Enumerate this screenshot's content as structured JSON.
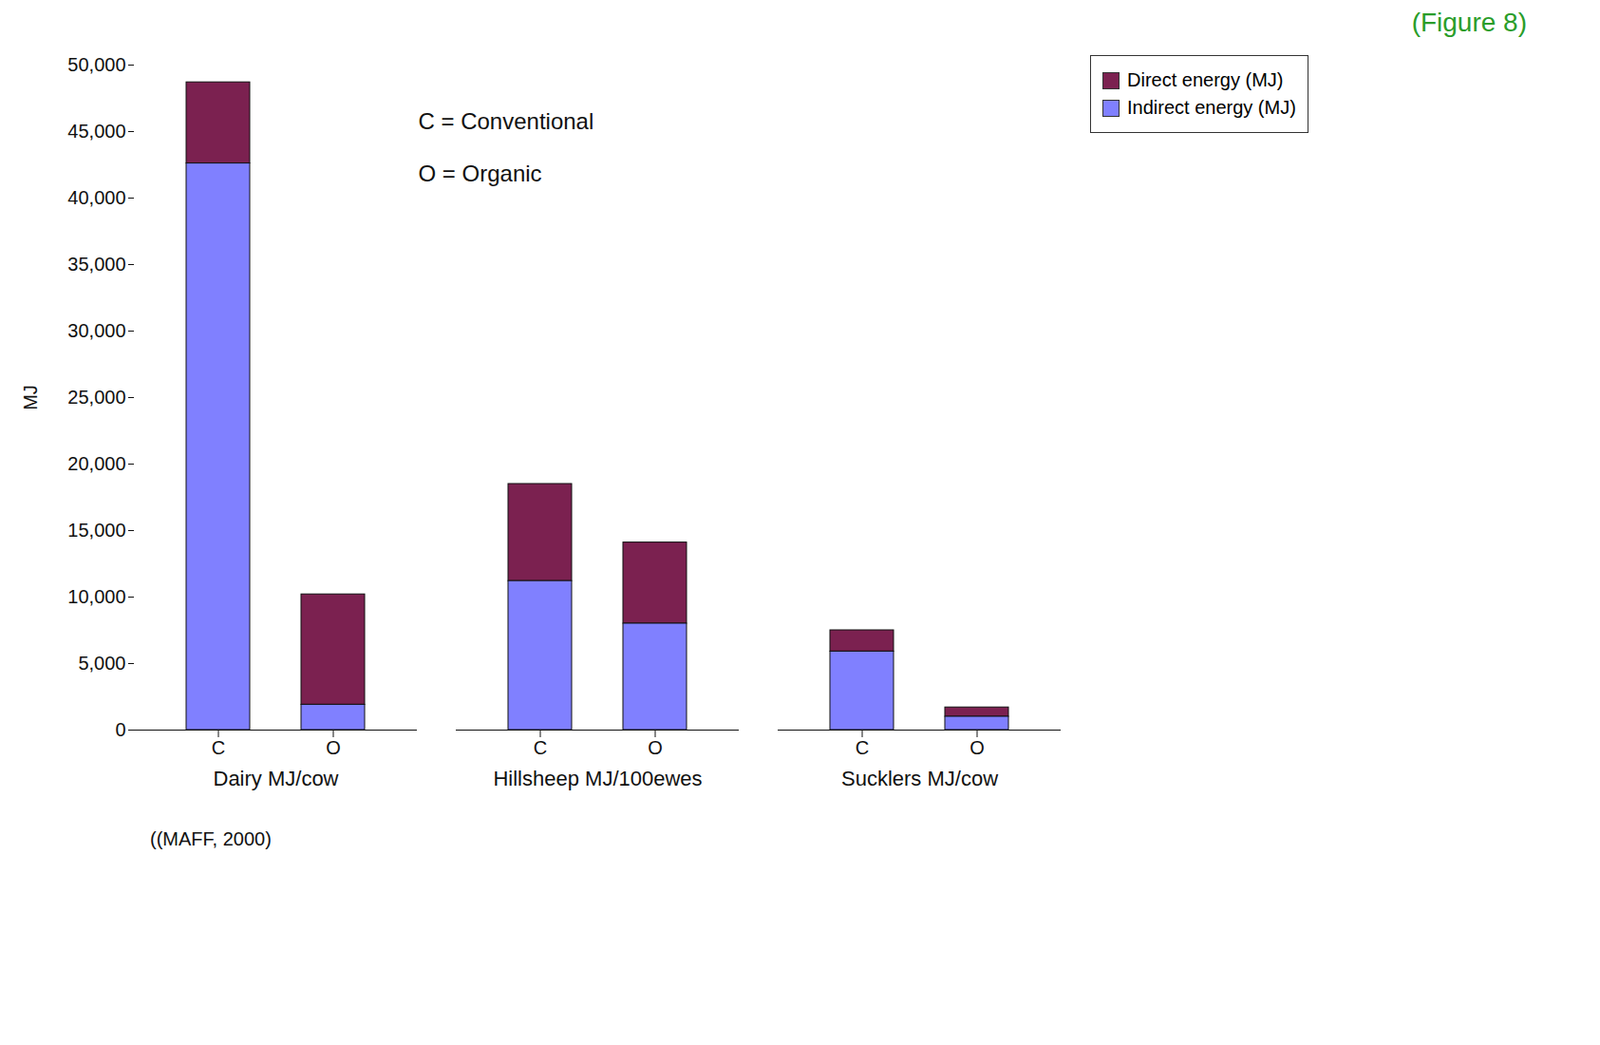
{
  "chart_data": {
    "type": "bar",
    "stacked": true,
    "figure_label": "(Figure 8)",
    "source": "((MAFF, 2000)",
    "y_label": "MJ",
    "annotations": [
      "C = Conventional",
      "O = Organic"
    ],
    "categories": [
      "C",
      "O",
      "C",
      "O",
      "C",
      "O"
    ],
    "groups": [
      "Dairy MJ/cow",
      "Dairy MJ/cow",
      "Hillsheep MJ/100ewes",
      "Hillsheep MJ/100ewes",
      "Sucklers MJ/cow",
      "Sucklers MJ/cow"
    ],
    "series": [
      {
        "name": "Direct energy (MJ)",
        "color": "#7b2150",
        "values": [
          6100,
          8300,
          7300,
          6100,
          1600,
          700
        ]
      },
      {
        "name": "Indirect energy (MJ)",
        "color": "#8080ff",
        "values": [
          42600,
          1900,
          11200,
          8000,
          5900,
          1000
        ]
      }
    ],
    "ylim": [
      0,
      50000
    ],
    "yticks": [
      0,
      {
        "value": 5000,
        "label": "5,000"
      },
      {
        "value": 10000,
        "label": "10,000"
      },
      {
        "value": 15000,
        "label": "15,000"
      },
      {
        "value": 20000,
        "label": "20,000"
      },
      {
        "value": 25000,
        "label": "25,000"
      },
      {
        "value": 30000,
        "label": "30,000"
      },
      {
        "value": 35000,
        "label": "35,000"
      },
      {
        "value": 40000,
        "label": "40,000"
      },
      {
        "value": 45000,
        "label": "45,000"
      },
      {
        "value": 50000,
        "label": "50,000"
      }
    ],
    "grid": false,
    "legend": "top-right"
  }
}
